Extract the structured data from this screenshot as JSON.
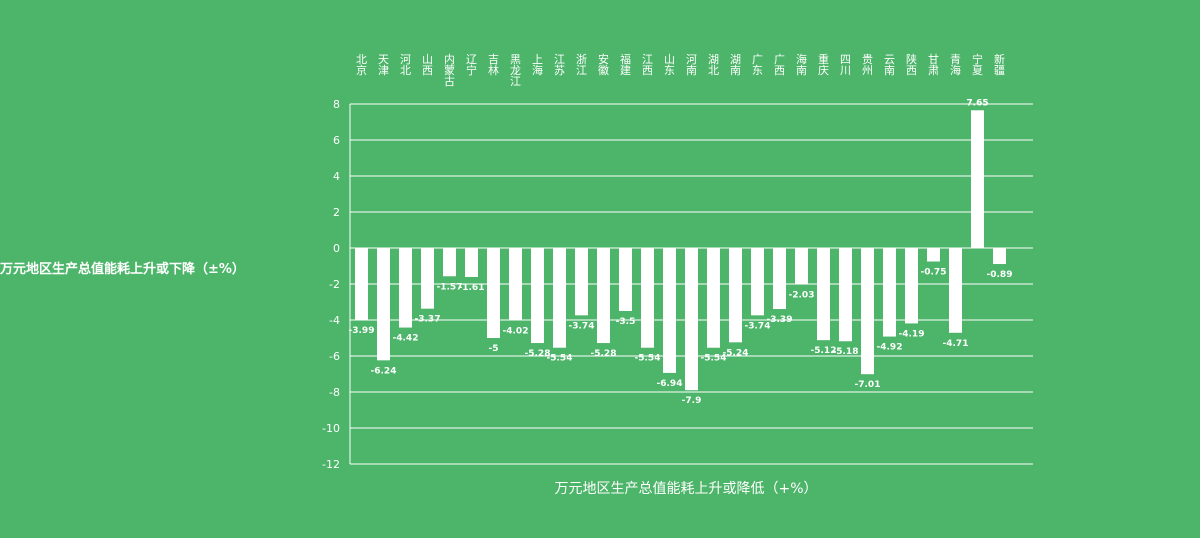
{
  "colors": {
    "background": "#4db56a",
    "bar": "#ffffff",
    "grid": "#ffffff",
    "text": "#ffffff"
  },
  "chart_data": {
    "type": "bar",
    "side_title": "万元地区生产总值能耗上升或下降（±%）",
    "xlabel": "万元地区生产总值能耗上升或降低（+%）",
    "ylim": [
      -12,
      8
    ],
    "yticks": [
      8,
      6,
      4,
      2,
      0,
      -2,
      -4,
      -6,
      -8,
      -10,
      -12
    ],
    "grid": true,
    "categories": [
      "北京",
      "天津",
      "河北",
      "山西",
      "内蒙古",
      "辽宁",
      "吉林",
      "黑龙江",
      "上海",
      "江苏",
      "浙江",
      "安徽",
      "福建",
      "江西",
      "山东",
      "河南",
      "湖北",
      "湖南",
      "广东",
      "广西",
      "海南",
      "重庆",
      "四川",
      "贵州",
      "云南",
      "陕西",
      "甘肃",
      "青海",
      "宁夏",
      "新疆"
    ],
    "values": [
      -3.99,
      -6.24,
      -4.42,
      -3.37,
      -1.57,
      -1.61,
      -5,
      -4.02,
      -5.28,
      -5.54,
      -3.74,
      -5.28,
      -3.5,
      -5.54,
      -6.94,
      -7.9,
      -5.54,
      -5.24,
      -3.74,
      -3.39,
      -2.03,
      -5.12,
      -5.18,
      -7.01,
      -4.92,
      -4.19,
      -0.75,
      -4.71,
      7.65,
      -0.89
    ],
    "value_labels": [
      "-3.99",
      "-6.24",
      "-4.42",
      "-3.37",
      "-1.57",
      "-1.61",
      "-5",
      "-4.02",
      "-5.28",
      "-5.54",
      "-3.74",
      "-5.28",
      "-3.5",
      "-5.54",
      "-6.94",
      "-7.9",
      "-5.54",
      "-5.24",
      "-3.74",
      "-3.39",
      "-2.03",
      "-5.12",
      "-5.18",
      "-7.01",
      "-4.92",
      "-4.19",
      "-0.75",
      "-4.71",
      "7.65",
      "-0.89"
    ]
  }
}
